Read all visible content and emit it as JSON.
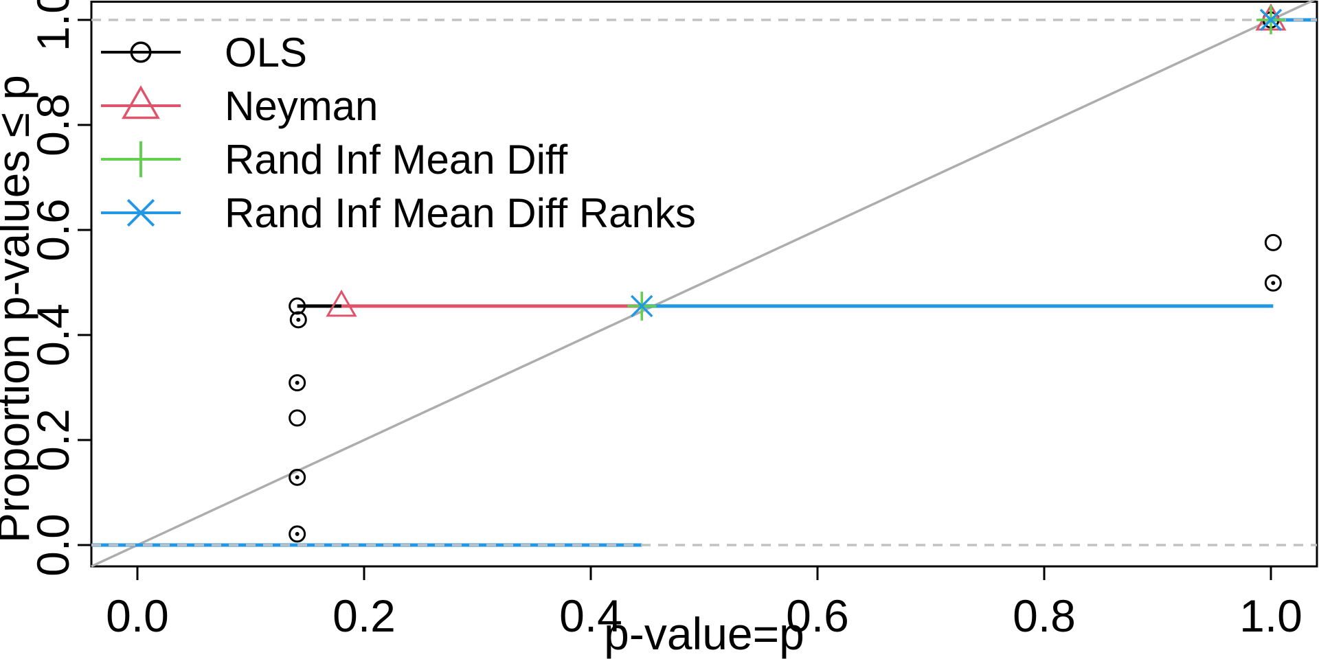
{
  "chart_data": {
    "type": "line",
    "subtype": "ecdf-step-plot",
    "title": "",
    "xlabel": "p-value=p",
    "ylabel": "Proportion p-values ≤ p",
    "xlim": [
      -0.0406,
      1.0406
    ],
    "ylim": [
      -0.0406,
      1.0406
    ],
    "grid": false,
    "x_ticks": {
      "values": [
        0.0,
        0.2,
        0.4,
        0.6,
        0.8,
        1.0
      ],
      "labels": [
        "0.0",
        "0.2",
        "0.4",
        "0.6",
        "0.8",
        "1.0"
      ]
    },
    "y_ticks": {
      "values": [
        0.0,
        0.2,
        0.4,
        0.6,
        0.8,
        1.0
      ],
      "labels": [
        "0.0",
        "0.2",
        "0.4",
        "0.6",
        "0.8",
        "1.0"
      ]
    },
    "reference_lines": [
      {
        "kind": "diagonal",
        "from": [
          -0.0406,
          -0.0406
        ],
        "to": [
          1.0406,
          1.0406
        ],
        "color": "#ADADAD",
        "style": "solid"
      },
      {
        "kind": "horizontal",
        "y": 0,
        "from_x": -0.0406,
        "to_x": 1.0406,
        "color": "#C2C2C2",
        "style": "dashed"
      },
      {
        "kind": "horizontal",
        "y": 1,
        "from_x": -0.0406,
        "to_x": 1.0406,
        "color": "#C2C2C2",
        "style": "dashed"
      }
    ],
    "legend": {
      "position": "top-left",
      "entries": [
        {
          "label": "OLS",
          "color": "#000000",
          "marker": "circle"
        },
        {
          "label": "Neyman",
          "color": "#DF536B",
          "marker": "triangle"
        },
        {
          "label": "Rand Inf Mean Diff",
          "color": "#61D04F",
          "marker": "plus"
        },
        {
          "label": "Rand Inf Mean Diff Ranks",
          "color": "#2297E6",
          "marker": "x"
        }
      ]
    },
    "series": [
      {
        "name": "OLS",
        "color": "#000000",
        "marker": "circle",
        "points": [
          {
            "x": 0.141,
            "y": 0.021,
            "dot": true
          },
          {
            "x": 0.141,
            "y": 0.129,
            "dot": true
          },
          {
            "x": 0.141,
            "y": 0.242,
            "dot": false
          },
          {
            "x": 0.141,
            "y": 0.309,
            "dot": true
          },
          {
            "x": 0.142,
            "y": 0.429,
            "dot": true
          },
          {
            "x": 0.141,
            "y": 0.455,
            "dot": false
          },
          {
            "x": 1.002,
            "y": 0.499,
            "dot": true
          },
          {
            "x": 1.002,
            "y": 0.576,
            "dot": false
          },
          {
            "x": 1.0,
            "y": 1.0,
            "dot": false
          }
        ],
        "segments": [
          [
            [
              0.141,
              0.455
            ],
            [
              0.18,
              0.455
            ]
          ]
        ]
      },
      {
        "name": "Neyman",
        "color": "#DF536B",
        "marker": "triangle",
        "points": [
          {
            "x": 0.18,
            "y": 0.455
          },
          {
            "x": 1.0,
            "y": 1.0
          }
        ],
        "segments": [
          [
            [
              0.18,
              0.455
            ],
            [
              0.445,
              0.455
            ]
          ]
        ]
      },
      {
        "name": "Rand Inf Mean Diff",
        "color": "#61D04F",
        "marker": "plus",
        "points": [
          {
            "x": 0.445,
            "y": 0.455
          },
          {
            "x": 1.0,
            "y": 1.0
          }
        ],
        "segments": [
          [
            [
              -0.0406,
              0.0
            ],
            [
              0.445,
              0.0
            ]
          ],
          [
            [
              0.445,
              0.455
            ],
            [
              1.002,
              0.455
            ]
          ],
          [
            [
              1.0,
              1.0
            ],
            [
              1.0406,
              1.0
            ]
          ]
        ]
      },
      {
        "name": "Rand Inf Mean Diff Ranks",
        "color": "#2297E6",
        "marker": "x",
        "points": [
          {
            "x": 0.445,
            "y": 0.455
          },
          {
            "x": 1.0,
            "y": 1.0
          }
        ],
        "segments": [
          [
            [
              -0.0406,
              0.0
            ],
            [
              0.445,
              0.0
            ]
          ],
          [
            [
              0.445,
              0.455
            ],
            [
              1.002,
              0.455
            ]
          ],
          [
            [
              1.0,
              1.0
            ],
            [
              1.0406,
              1.0
            ]
          ]
        ]
      }
    ]
  }
}
